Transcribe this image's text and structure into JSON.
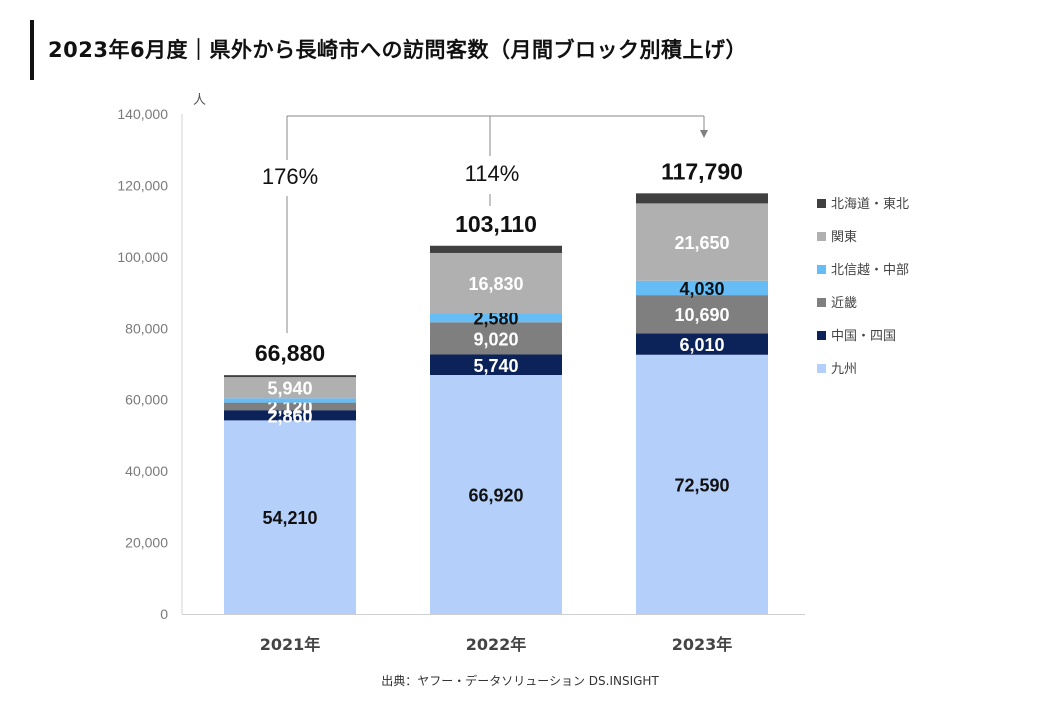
{
  "title": "2023年6月度｜県外から長崎市への訪問客数（月間ブロック別積上げ）",
  "source": "出典：ヤフー・データソリューション DS.INSIGHT",
  "chart_data": {
    "type": "bar",
    "stacked": true,
    "title": "2023年6月度｜県外から長崎市への訪問客数（月間ブロック別積上げ）",
    "xlabel": "",
    "ylabel": "人",
    "ylim": [
      0,
      140000
    ],
    "yticks": [
      0,
      20000,
      40000,
      60000,
      80000,
      100000,
      120000,
      140000
    ],
    "ytick_labels": [
      "0",
      "20,000",
      "40,000",
      "60,000",
      "80,000",
      "100,000",
      "120,000",
      "140,000"
    ],
    "grid": false,
    "legend_position": "right",
    "categories": [
      "2021年",
      "2022年",
      "2023年"
    ],
    "series": [
      {
        "name": "九州",
        "color": "#b4cffa",
        "label_color": "#111111",
        "values": [
          54210,
          66920,
          72590
        ],
        "labels": [
          "54,210",
          "66,920",
          "72,590"
        ]
      },
      {
        "name": "中国・四国",
        "color": "#0c2359",
        "label_color": "#ffffff",
        "values": [
          2860,
          5740,
          6010
        ],
        "labels": [
          "2,860",
          "5,740",
          "6,010"
        ]
      },
      {
        "name": "近畿",
        "color": "#7f7f7f",
        "label_color": "#ffffff",
        "values": [
          2120,
          9020,
          10690
        ],
        "labels": [
          "2,120",
          "9,020",
          "10,690"
        ]
      },
      {
        "name": "北信越・中部",
        "color": "#66bdf5",
        "label_color": "#111111",
        "values": [
          1200,
          2580,
          4030
        ],
        "labels": [
          "",
          "2,580",
          "4,030"
        ]
      },
      {
        "name": "関東",
        "color": "#b0b0b0",
        "label_color": "#ffffff",
        "values": [
          5940,
          16830,
          21650
        ],
        "labels": [
          "5,940",
          "16,830",
          "21,650"
        ]
      },
      {
        "name": "北海道・東北",
        "color": "#404040",
        "label_color": "#ffffff",
        "values": [
          550,
          2020,
          2820
        ],
        "labels": [
          "",
          "",
          ""
        ]
      }
    ],
    "totals": [
      66880,
      103110,
      117790
    ],
    "total_labels": [
      "66,880",
      "103,110",
      "117,790"
    ],
    "growth_annotations": [
      {
        "from": "2021年",
        "to": "2023年",
        "label": "176%"
      },
      {
        "from": "2022年",
        "to": "2023年",
        "label": "114%"
      }
    ],
    "legend_order": [
      "北海道・東北",
      "関東",
      "北信越・中部",
      "近畿",
      "中国・四国",
      "九州"
    ]
  }
}
